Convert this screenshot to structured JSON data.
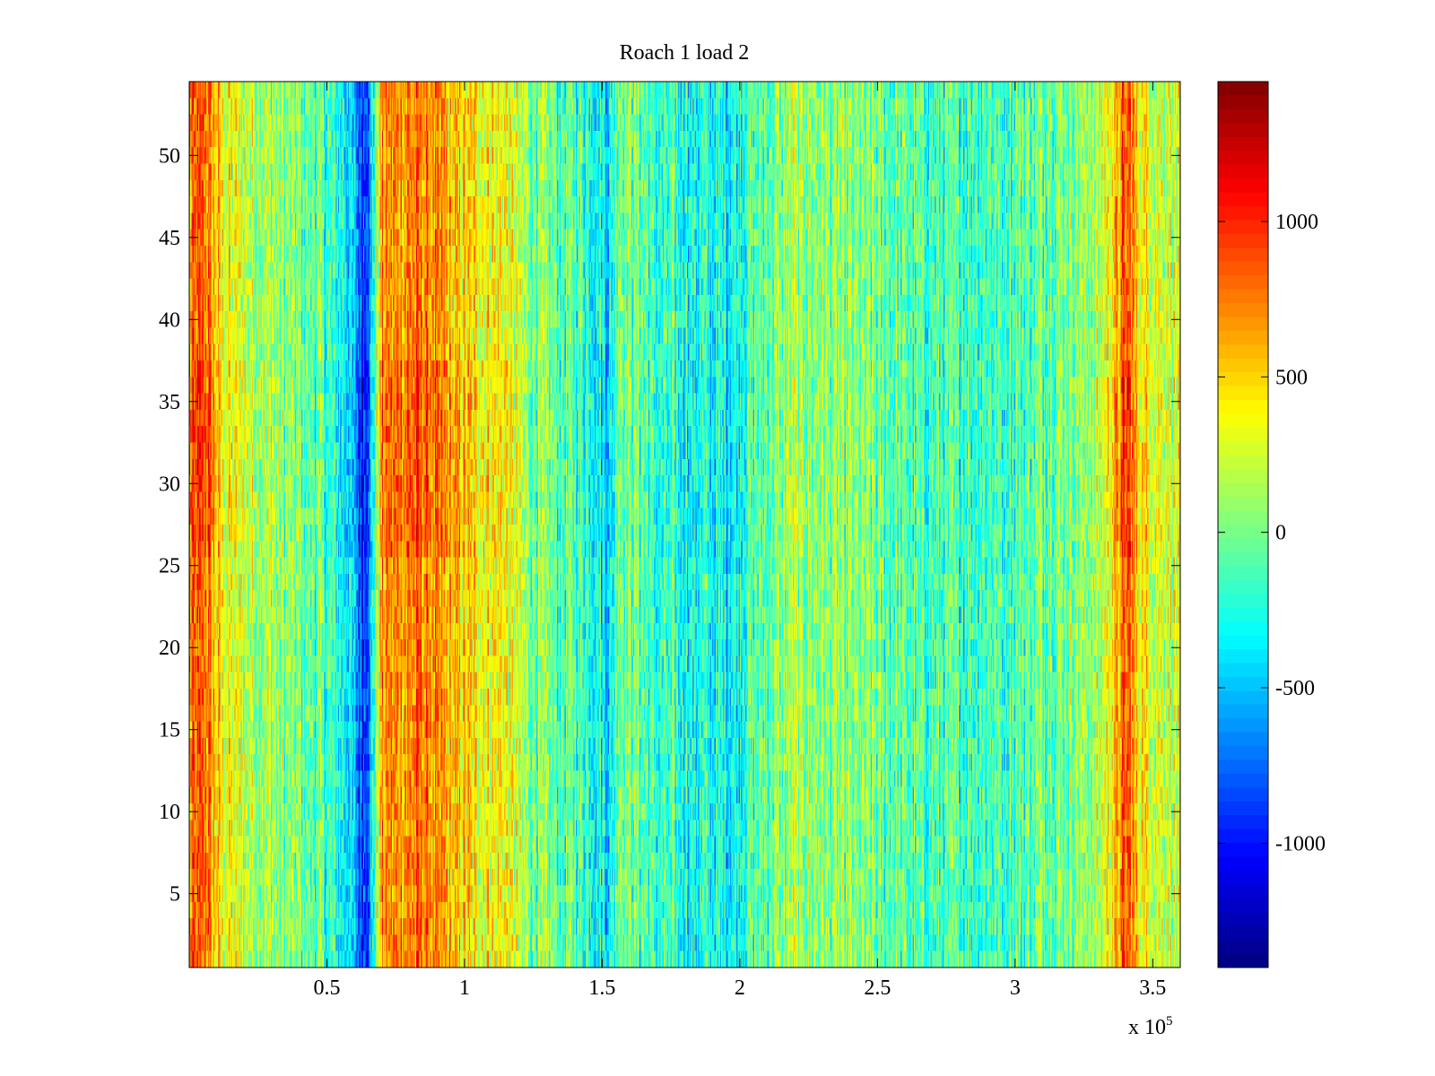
{
  "chart_data": {
    "type": "heatmap",
    "title": "Roach 1 load 2",
    "xlabel": "",
    "ylabel": "",
    "xlim": [
      0,
      360000
    ],
    "ylim": [
      0.5,
      54.5
    ],
    "x_ticks": [
      {
        "value": 50000,
        "label": "0.5"
      },
      {
        "value": 100000,
        "label": "1"
      },
      {
        "value": 150000,
        "label": "1.5"
      },
      {
        "value": 200000,
        "label": "2"
      },
      {
        "value": 250000,
        "label": "2.5"
      },
      {
        "value": 300000,
        "label": "3"
      },
      {
        "value": 350000,
        "label": "3.5"
      }
    ],
    "x_multiplier": {
      "base": "x 10",
      "exponent": "5"
    },
    "y_ticks": [
      {
        "value": 5,
        "label": "5"
      },
      {
        "value": 10,
        "label": "10"
      },
      {
        "value": 15,
        "label": "15"
      },
      {
        "value": 20,
        "label": "20"
      },
      {
        "value": 25,
        "label": "25"
      },
      {
        "value": 30,
        "label": "30"
      },
      {
        "value": 35,
        "label": "35"
      },
      {
        "value": 40,
        "label": "40"
      },
      {
        "value": 45,
        "label": "45"
      },
      {
        "value": 50,
        "label": "50"
      }
    ],
    "rows": 54,
    "colormap": "jet",
    "clim": [
      -1400,
      1450
    ],
    "colorbar": {
      "placement": "right",
      "ticks": [
        {
          "value": 1000,
          "label": "1000"
        },
        {
          "value": 500,
          "label": "500"
        },
        {
          "value": 0,
          "label": "0"
        },
        {
          "value": -500,
          "label": "-500"
        },
        {
          "value": -1000,
          "label": "-1000"
        }
      ]
    },
    "column_profile": [
      {
        "x": 0,
        "value": 700
      },
      {
        "x": 6000,
        "value": 800
      },
      {
        "x": 12000,
        "value": 350
      },
      {
        "x": 25000,
        "value": 150
      },
      {
        "x": 45000,
        "value": -50
      },
      {
        "x": 58000,
        "value": -350
      },
      {
        "x": 63000,
        "value": -850
      },
      {
        "x": 66000,
        "value": -500
      },
      {
        "x": 70000,
        "value": 650
      },
      {
        "x": 85000,
        "value": 750
      },
      {
        "x": 100000,
        "value": 450
      },
      {
        "x": 115000,
        "value": 350
      },
      {
        "x": 125000,
        "value": 0
      },
      {
        "x": 145000,
        "value": -150
      },
      {
        "x": 153000,
        "value": -400
      },
      {
        "x": 156000,
        "value": 100
      },
      {
        "x": 170000,
        "value": -200
      },
      {
        "x": 195000,
        "value": -300
      },
      {
        "x": 205000,
        "value": -100
      },
      {
        "x": 220000,
        "value": 100
      },
      {
        "x": 240000,
        "value": 0
      },
      {
        "x": 270000,
        "value": -150
      },
      {
        "x": 300000,
        "value": -100
      },
      {
        "x": 330000,
        "value": 150
      },
      {
        "x": 337000,
        "value": 550
      },
      {
        "x": 341000,
        "value": 850
      },
      {
        "x": 345000,
        "value": 400
      },
      {
        "x": 360000,
        "value": 200
      }
    ]
  }
}
